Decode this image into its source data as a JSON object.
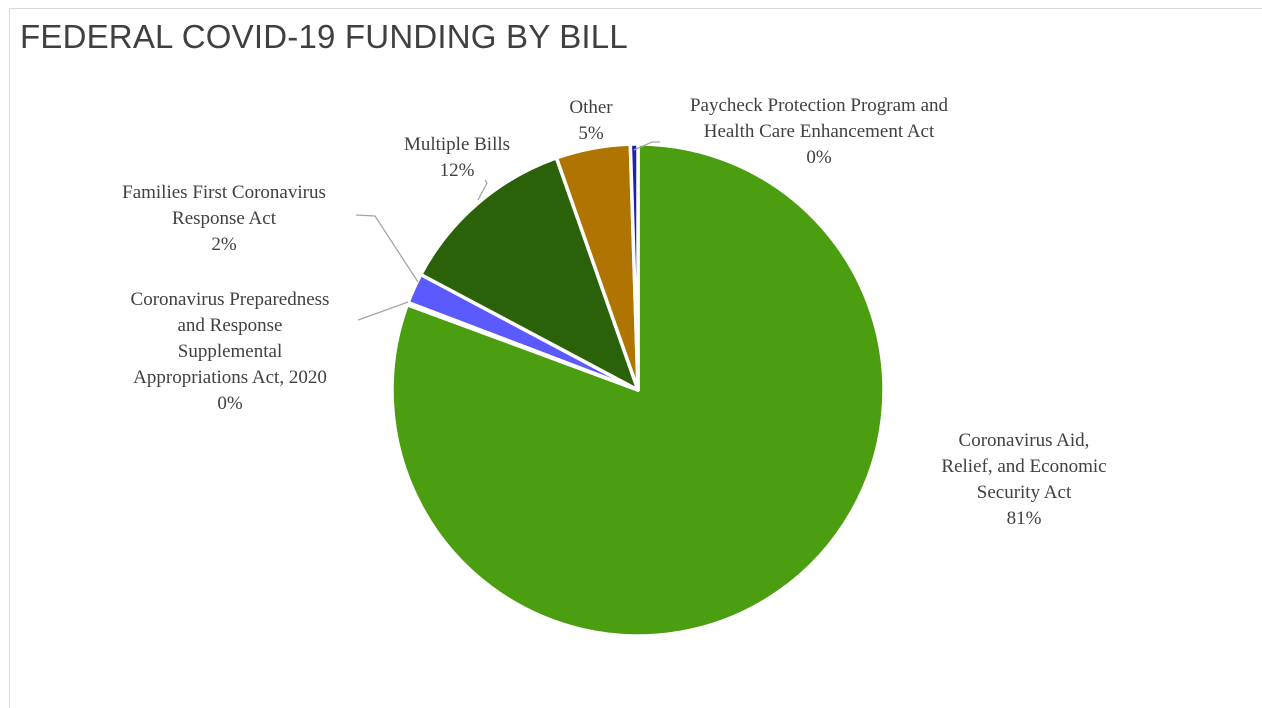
{
  "chart_data": {
    "type": "pie",
    "title": "FEDERAL COVID-19 FUNDING BY BILL",
    "slices": [
      {
        "label_lines": [
          "Coronavirus Aid,",
          "Relief, and Economic",
          "Security Act"
        ],
        "pct_label": "81%",
        "value": 81.0,
        "color": "#4a9e0f"
      },
      {
        "label_lines": [
          "Coronavirus Preparedness",
          "and Response",
          "Supplemental",
          "Appropriations Act, 2020"
        ],
        "pct_label": "0%",
        "value": 0.15,
        "color": "#ffffff"
      },
      {
        "label_lines": [
          "Families First Coronavirus",
          "Response Act"
        ],
        "pct_label": "2%",
        "value": 2.0,
        "color": "#5a5aff"
      },
      {
        "label_lines": [
          "Multiple Bills"
        ],
        "pct_label": "12%",
        "value": 11.9,
        "color": "#2b6109"
      },
      {
        "label_lines": [
          "Other"
        ],
        "pct_label": "5%",
        "value": 4.9,
        "color": "#b07400"
      },
      {
        "label_lines": [
          "Paycheck Protection Program and",
          "Health Care Enhancement Act"
        ],
        "pct_label": "0%",
        "value": 0.5,
        "color": "#1f1fb0"
      }
    ]
  }
}
